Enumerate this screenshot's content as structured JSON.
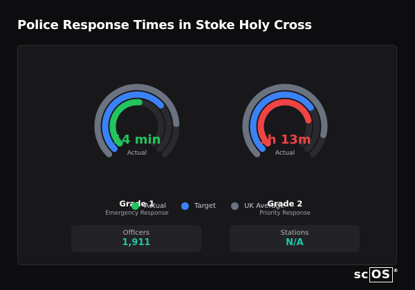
{
  "title": "Police Response Times in Stoke Holy Cross",
  "gauges": [
    {
      "value_text": "14 min",
      "value_label": "Actual",
      "grade": "Grade 1",
      "description": "Emergency Response",
      "actual_fraction": 0.52,
      "target_fraction": 0.68,
      "uk_avg_fraction": 0.82,
      "actual_color": "#22c55e"
    },
    {
      "value_text": "1h 13m",
      "value_label": "Actual",
      "grade": "Grade 2",
      "description": "Priority Response",
      "actual_fraction": 0.78,
      "target_fraction": 0.7,
      "uk_avg_fraction": 0.88,
      "actual_color": "#ef4444"
    }
  ],
  "legend": [
    {
      "label": "Actual",
      "color": "#22c55e"
    },
    {
      "label": "Target",
      "color": "#3b82f6"
    },
    {
      "label": "UK Average",
      "color": "#6b7280"
    }
  ],
  "stats": [
    {
      "label": "Officers",
      "value": "1,911"
    },
    {
      "label": "Stations",
      "value": "N/A"
    }
  ],
  "brand": {
    "prefix": "sc",
    "boxed": "OS",
    "mark": "®"
  },
  "colors": {
    "target": "#3b82f6",
    "uk_average": "#6b7280",
    "track": "#2a2a2e"
  }
}
